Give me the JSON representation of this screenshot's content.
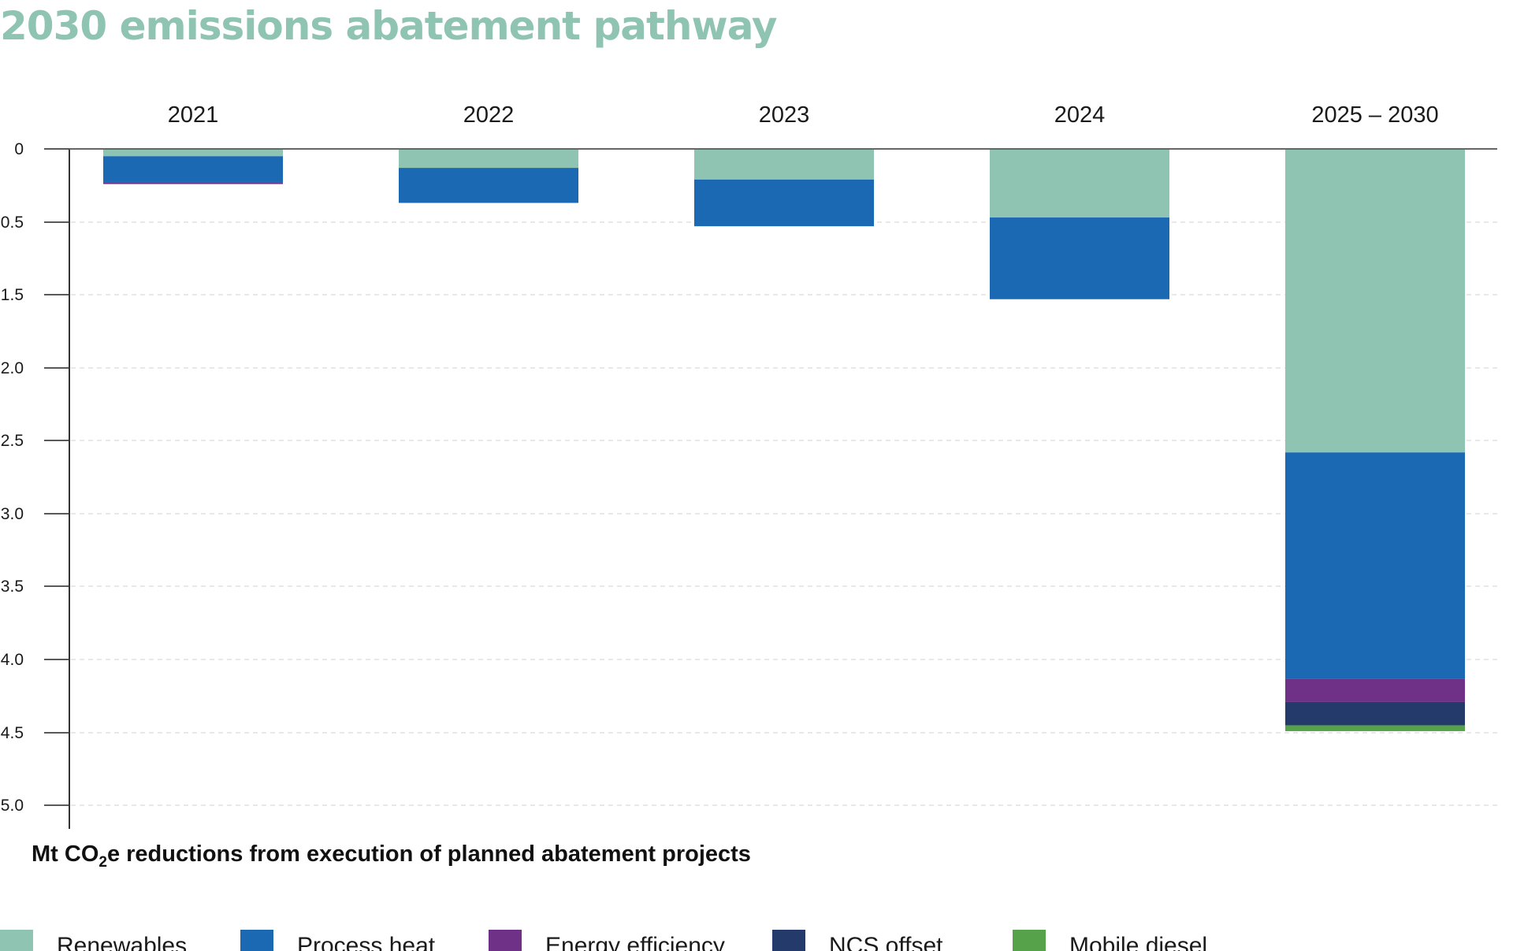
{
  "chart_data": {
    "type": "bar",
    "stacked": true,
    "title": "2030 emissions abatement pathway",
    "xlabel": "",
    "ylabel": "",
    "caption": {
      "main": "Mt CO",
      "subscript": "2",
      "rest": "e reductions from execution of planned abatement projects"
    },
    "categories": [
      "2021",
      "2022",
      "2023",
      "2024",
      "2025 – 2030"
    ],
    "y_ticks": [
      0,
      -0.5,
      -1.5,
      -2.0,
      -2.5,
      -3.0,
      -3.5,
      -4.0,
      -4.5,
      -5.0
    ],
    "y_tick_labels": [
      "0",
      "-0.5",
      "-1.5",
      "-2.0",
      "-2.5",
      "-3.0",
      "-3.5",
      "-4.0",
      "-4.5",
      "-5.0"
    ],
    "grid": true,
    "legend_position": "bottom",
    "series": [
      {
        "name": "Renewables",
        "color": "#8fc3b2",
        "values": [
          -0.05,
          -0.13,
          -0.21,
          -0.47,
          -2.08
        ]
      },
      {
        "name": "Process heat",
        "color": "#1c69b3",
        "values": [
          -0.18,
          -0.24,
          -0.32,
          -0.56,
          -1.55
        ]
      },
      {
        "name": "Energy efficiency",
        "color": "#6e3187",
        "values": [
          -0.01,
          0,
          0,
          0,
          -0.16
        ]
      },
      {
        "name": "NCS offset",
        "color": "#233a6b",
        "values": [
          0,
          0,
          0,
          0,
          -0.16
        ]
      },
      {
        "name": "Mobile diesel",
        "color": "#56a24b",
        "values": [
          0,
          0,
          0,
          0,
          -0.04
        ]
      }
    ]
  }
}
